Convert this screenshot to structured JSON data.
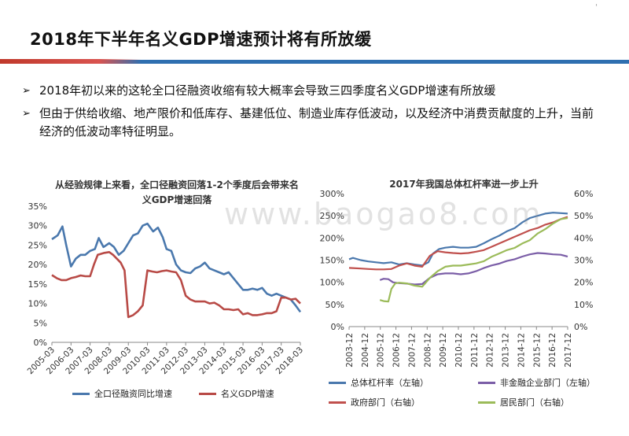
{
  "slide": {
    "title": "2018年下半年名义GDP增速预计将有所放缓",
    "bullets": [
      "2018年初以来的这轮全口径融资收缩有较大概率会导致三四季度名义GDP增速有所放缓",
      "但由于供给收缩、地产限价和低库存、基建低位、制造业库存低波动，以及经济中消费贡献度的上升，当前经济的低波动率特征明显。"
    ],
    "bullet_mark": "➢",
    "watermark": "www.baogao8.com",
    "page_mark": "'"
  },
  "chart_data": [
    {
      "type": "line",
      "title": "从经验规律上来看，全口径融资回落1-2个季度后会带来名义GDP增速回落",
      "x_ticks": [
        "2005-03",
        "2006-03",
        "2007-03",
        "2008-03",
        "2009-03",
        "2010-03",
        "2011-03",
        "2012-03",
        "2013-03",
        "2014-03",
        "2015-03",
        "2016-03",
        "2017-03",
        "2018-03"
      ],
      "y_ticks": [
        "0%",
        "5%",
        "10%",
        "15%",
        "20%",
        "25%",
        "30%",
        "35%"
      ],
      "ylim": [
        0,
        35
      ],
      "x_range": [
        2005.0,
        2018.0
      ],
      "series": [
        {
          "name": "全口径融资同比增速",
          "color": "#4a78ad",
          "points": [
            [
              2005.0,
              26.5
            ],
            [
              2005.3,
              27.5
            ],
            [
              2005.55,
              29.8
            ],
            [
              2005.75,
              25
            ],
            [
              2006.0,
              19.5
            ],
            [
              2006.25,
              21.5
            ],
            [
              2006.5,
              22.5
            ],
            [
              2006.75,
              22.5
            ],
            [
              2007.0,
              23.5
            ],
            [
              2007.25,
              24
            ],
            [
              2007.45,
              26.8
            ],
            [
              2007.7,
              24.5
            ],
            [
              2008.0,
              25.5
            ],
            [
              2008.25,
              24.5
            ],
            [
              2008.5,
              22.5
            ],
            [
              2008.75,
              23.5
            ],
            [
              2009.0,
              25.5
            ],
            [
              2009.25,
              27.5
            ],
            [
              2009.5,
              28
            ],
            [
              2009.75,
              30
            ],
            [
              2010.0,
              30.5
            ],
            [
              2010.3,
              28.5
            ],
            [
              2010.55,
              29.5
            ],
            [
              2010.8,
              27
            ],
            [
              2011.0,
              24
            ],
            [
              2011.25,
              23.5
            ],
            [
              2011.5,
              20
            ],
            [
              2011.75,
              18.5
            ],
            [
              2012.0,
              18
            ],
            [
              2012.25,
              17.8
            ],
            [
              2012.5,
              19
            ],
            [
              2012.75,
              19.5
            ],
            [
              2013.0,
              20.5
            ],
            [
              2013.25,
              19
            ],
            [
              2013.5,
              18.5
            ],
            [
              2013.75,
              18
            ],
            [
              2014.0,
              17.5
            ],
            [
              2014.25,
              18
            ],
            [
              2014.5,
              16.5
            ],
            [
              2014.75,
              15
            ],
            [
              2015.0,
              13.5
            ],
            [
              2015.25,
              13.5
            ],
            [
              2015.5,
              13.8
            ],
            [
              2015.75,
              13.5
            ],
            [
              2016.0,
              14
            ],
            [
              2016.25,
              12.5
            ],
            [
              2016.5,
              12
            ],
            [
              2016.75,
              12.5
            ],
            [
              2017.0,
              12
            ],
            [
              2017.25,
              11.5
            ],
            [
              2017.5,
              11
            ],
            [
              2017.75,
              9.5
            ],
            [
              2018.0,
              7.8
            ]
          ]
        },
        {
          "name": "名义GDP增速",
          "color": "#b84a46",
          "points": [
            [
              2005.0,
              17.3
            ],
            [
              2005.25,
              16.5
            ],
            [
              2005.5,
              16
            ],
            [
              2005.75,
              16
            ],
            [
              2006.0,
              16.5
            ],
            [
              2006.25,
              16.8
            ],
            [
              2006.5,
              17.2
            ],
            [
              2006.75,
              17
            ],
            [
              2007.0,
              17
            ],
            [
              2007.2,
              20
            ],
            [
              2007.4,
              22.5
            ],
            [
              2007.75,
              23
            ],
            [
              2008.0,
              23.2
            ],
            [
              2008.2,
              22.5
            ],
            [
              2008.4,
              21.5
            ],
            [
              2008.6,
              20.5
            ],
            [
              2008.8,
              18.5
            ],
            [
              2009.0,
              6.5
            ],
            [
              2009.25,
              7
            ],
            [
              2009.5,
              8
            ],
            [
              2009.75,
              9.5
            ],
            [
              2010.0,
              18.5
            ],
            [
              2010.25,
              18.2
            ],
            [
              2010.5,
              18
            ],
            [
              2010.75,
              18.3
            ],
            [
              2011.0,
              18.5
            ],
            [
              2011.25,
              18.2
            ],
            [
              2011.5,
              18
            ],
            [
              2011.75,
              16
            ],
            [
              2012.0,
              12
            ],
            [
              2012.25,
              11
            ],
            [
              2012.5,
              10.5
            ],
            [
              2012.75,
              10.5
            ],
            [
              2013.0,
              10.5
            ],
            [
              2013.25,
              10
            ],
            [
              2013.5,
              10.2
            ],
            [
              2013.75,
              9.5
            ],
            [
              2014.0,
              8.5
            ],
            [
              2014.25,
              8.5
            ],
            [
              2014.5,
              8.3
            ],
            [
              2014.75,
              8.5
            ],
            [
              2015.0,
              7.2
            ],
            [
              2015.25,
              7.5
            ],
            [
              2015.5,
              7
            ],
            [
              2015.75,
              7
            ],
            [
              2016.0,
              7.2
            ],
            [
              2016.25,
              7.5
            ],
            [
              2016.5,
              7.5
            ],
            [
              2016.75,
              8
            ],
            [
              2017.0,
              11.5
            ],
            [
              2017.25,
              11.5
            ],
            [
              2017.5,
              11
            ],
            [
              2017.75,
              11.2
            ],
            [
              2018.0,
              10
            ]
          ]
        }
      ]
    },
    {
      "type": "line",
      "title": "2017年我国总体杠杆率进一步上升",
      "x_ticks": [
        "2003-12",
        "2004-12",
        "2005-12",
        "2006-12",
        "2007-12",
        "2008-12",
        "2009-12",
        "2010-12",
        "2011-12",
        "2012-12",
        "2013-12",
        "2014-12",
        "2015-12",
        "2016-12",
        "2017-12"
      ],
      "y_left_ticks": [
        "0%",
        "50%",
        "100%",
        "150%",
        "200%",
        "250%",
        "300%"
      ],
      "y_right_ticks": [
        "0%",
        "10%",
        "20%",
        "30%",
        "40%",
        "50%",
        "60%"
      ],
      "ylim_left": [
        0,
        300
      ],
      "ylim_right": [
        0,
        60
      ],
      "x_range": [
        2003.75,
        2017.95
      ],
      "series": [
        {
          "name": "总体杠杆率（左轴）",
          "axis": "left",
          "color": "#4a78ad",
          "points": [
            [
              2003.75,
              152
            ],
            [
              2004.0,
              155
            ],
            [
              2004.5,
              150
            ],
            [
              2005.0,
              147
            ],
            [
              2005.5,
              145
            ],
            [
              2006.0,
              143
            ],
            [
              2006.5,
              145
            ],
            [
              2007.0,
              140
            ],
            [
              2007.5,
              143
            ],
            [
              2008.0,
              140
            ],
            [
              2008.5,
              138
            ],
            [
              2008.9,
              145
            ],
            [
              2009.2,
              165
            ],
            [
              2009.6,
              175
            ],
            [
              2010.0,
              178
            ],
            [
              2010.5,
              180
            ],
            [
              2011.0,
              178
            ],
            [
              2011.5,
              178
            ],
            [
              2012.0,
              180
            ],
            [
              2012.5,
              188
            ],
            [
              2013.0,
              197
            ],
            [
              2013.5,
              205
            ],
            [
              2014.0,
              215
            ],
            [
              2014.5,
              222
            ],
            [
              2015.0,
              235
            ],
            [
              2015.5,
              245
            ],
            [
              2016.0,
              250
            ],
            [
              2016.5,
              255
            ],
            [
              2017.0,
              257
            ],
            [
              2017.5,
              256
            ],
            [
              2017.95,
              255
            ]
          ]
        },
        {
          "name": "非金融企业部门（左轴）",
          "axis": "left",
          "color": "#7b5ea7",
          "points": [
            [
              2005.75,
              105
            ],
            [
              2006.0,
              108
            ],
            [
              2006.3,
              107
            ],
            [
              2006.6,
              100
            ],
            [
              2007.0,
              98
            ],
            [
              2007.5,
              97
            ],
            [
              2008.0,
              95
            ],
            [
              2008.5,
              96
            ],
            [
              2009.0,
              110
            ],
            [
              2009.5,
              118
            ],
            [
              2010.0,
              120
            ],
            [
              2010.5,
              120
            ],
            [
              2011.0,
              118
            ],
            [
              2011.5,
              120
            ],
            [
              2012.0,
              125
            ],
            [
              2012.5,
              132
            ],
            [
              2013.0,
              138
            ],
            [
              2013.5,
              142
            ],
            [
              2014.0,
              148
            ],
            [
              2014.5,
              152
            ],
            [
              2015.0,
              158
            ],
            [
              2015.5,
              163
            ],
            [
              2016.0,
              166
            ],
            [
              2016.5,
              165
            ],
            [
              2017.0,
              163
            ],
            [
              2017.5,
              162
            ],
            [
              2017.95,
              158
            ]
          ]
        },
        {
          "name": "政府部门（右轴）",
          "axis": "right",
          "color": "#c0504d",
          "points": [
            [
              2003.75,
              26.5
            ],
            [
              2004.5,
              26.2
            ],
            [
              2005.0,
              26
            ],
            [
              2005.5,
              25.8
            ],
            [
              2006.0,
              25.8
            ],
            [
              2006.5,
              26
            ],
            [
              2007.0,
              27.5
            ],
            [
              2007.5,
              28.5
            ],
            [
              2008.0,
              27.5
            ],
            [
              2008.5,
              27
            ],
            [
              2009.0,
              32
            ],
            [
              2009.5,
              34
            ],
            [
              2010.0,
              33.5
            ],
            [
              2010.5,
              33.2
            ],
            [
              2011.0,
              33
            ],
            [
              2011.5,
              33.2
            ],
            [
              2012.0,
              33.8
            ],
            [
              2012.5,
              34.5
            ],
            [
              2013.0,
              36
            ],
            [
              2013.5,
              37.5
            ],
            [
              2014.0,
              39
            ],
            [
              2014.5,
              40.5
            ],
            [
              2015.0,
              42
            ],
            [
              2015.5,
              43.5
            ],
            [
              2016.0,
              44.5
            ],
            [
              2016.5,
              46
            ],
            [
              2017.0,
              47
            ],
            [
              2017.5,
              48.5
            ],
            [
              2017.95,
              49.5
            ]
          ]
        },
        {
          "name": "居民部门（右轴）",
          "axis": "right",
          "color": "#9bbb59",
          "points": [
            [
              2005.75,
              12
            ],
            [
              2006.0,
              11.5
            ],
            [
              2006.3,
              11.3
            ],
            [
              2006.5,
              17
            ],
            [
              2006.75,
              19.5
            ],
            [
              2007.0,
              19.8
            ],
            [
              2007.5,
              19.5
            ],
            [
              2008.0,
              18.5
            ],
            [
              2008.5,
              18
            ],
            [
              2009.0,
              22
            ],
            [
              2009.5,
              25
            ],
            [
              2010.0,
              27
            ],
            [
              2010.5,
              27.5
            ],
            [
              2011.0,
              27.5
            ],
            [
              2011.5,
              28
            ],
            [
              2012.0,
              28.5
            ],
            [
              2012.5,
              29.5
            ],
            [
              2013.0,
              31.5
            ],
            [
              2013.5,
              33
            ],
            [
              2014.0,
              34.5
            ],
            [
              2014.5,
              35.5
            ],
            [
              2015.0,
              37.5
            ],
            [
              2015.5,
              39
            ],
            [
              2016.0,
              42
            ],
            [
              2016.5,
              44
            ],
            [
              2017.0,
              46.5
            ],
            [
              2017.5,
              48.5
            ],
            [
              2017.95,
              49
            ]
          ]
        }
      ]
    }
  ]
}
